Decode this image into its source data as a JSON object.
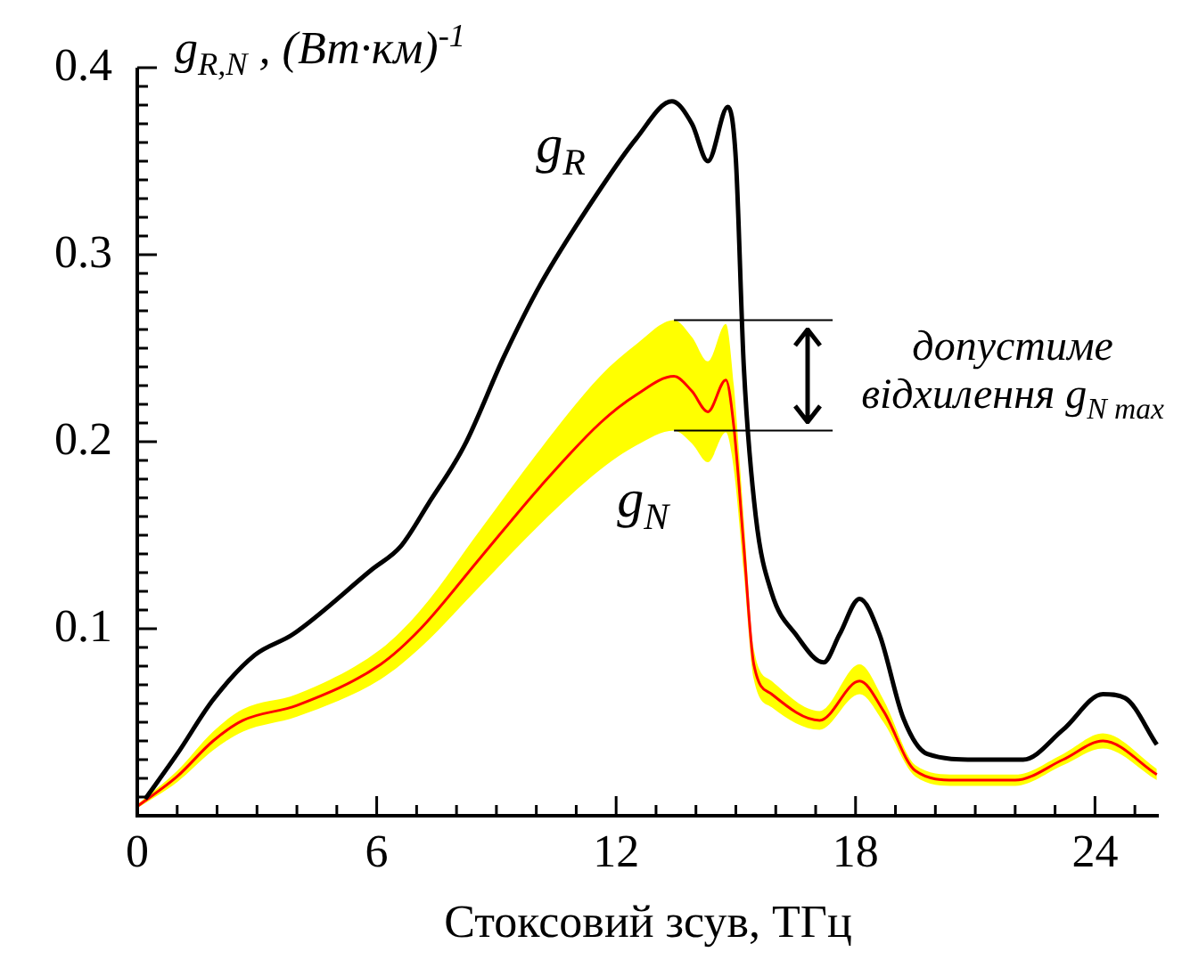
{
  "chart_data": {
    "type": "line",
    "xlabel": "Стоксовий зсув, ТГц",
    "ylabel": "g$_{R,N}$ ,  (Вт·км)$^{-1}$",
    "xlim": [
      0,
      25.6
    ],
    "ylim": [
      0,
      0.4
    ],
    "xticks": [
      0,
      {
        "value": 1,
        "label": null
      },
      {
        "value": 2,
        "label": null
      },
      {
        "value": 3,
        "label": null
      },
      {
        "value": 4,
        "label": null
      },
      {
        "value": 5,
        "label": null
      },
      6,
      {
        "value": 7,
        "label": null
      },
      {
        "value": 8,
        "label": null
      },
      {
        "value": 9,
        "label": null
      },
      {
        "value": 10,
        "label": null
      },
      {
        "value": 11,
        "label": null
      },
      12,
      {
        "value": 13,
        "label": null
      },
      {
        "value": 14,
        "label": null
      },
      {
        "value": 15,
        "label": null
      },
      {
        "value": 16,
        "label": null
      },
      {
        "value": 17,
        "label": null
      },
      18,
      {
        "value": 19,
        "label": null
      },
      {
        "value": 20,
        "label": null
      },
      {
        "value": 21,
        "label": null
      },
      {
        "value": 22,
        "label": null
      },
      {
        "value": 23,
        "label": null
      },
      24,
      {
        "value": 25,
        "label": null
      }
    ],
    "yticks": [
      {
        "value": 0,
        "label": null
      },
      {
        "value": 0.01,
        "label": null
      },
      {
        "value": 0.02,
        "label": null
      },
      {
        "value": 0.03,
        "label": null
      },
      {
        "value": 0.04,
        "label": null
      },
      {
        "value": 0.05,
        "label": null
      },
      {
        "value": 0.06,
        "label": null
      },
      {
        "value": 0.07,
        "label": null
      },
      {
        "value": 0.08,
        "label": null
      },
      {
        "value": 0.09,
        "label": null
      },
      0.1,
      {
        "value": 0.11,
        "label": null
      },
      {
        "value": 0.12,
        "label": null
      },
      {
        "value": 0.13,
        "label": null
      },
      {
        "value": 0.14,
        "label": null
      },
      {
        "value": 0.15,
        "label": null
      },
      {
        "value": 0.16,
        "label": null
      },
      {
        "value": 0.17,
        "label": null
      },
      {
        "value": 0.18,
        "label": null
      },
      {
        "value": 0.19,
        "label": null
      },
      0.2,
      {
        "value": 0.21,
        "label": null
      },
      {
        "value": 0.22,
        "label": null
      },
      {
        "value": 0.23,
        "label": null
      },
      {
        "value": 0.24,
        "label": null
      },
      {
        "value": 0.25,
        "label": null
      },
      {
        "value": 0.26,
        "label": null
      },
      {
        "value": 0.27,
        "label": null
      },
      {
        "value": 0.28,
        "label": null
      },
      {
        "value": 0.29,
        "label": null
      },
      0.3,
      {
        "value": 0.31,
        "label": null
      },
      {
        "value": 0.32,
        "label": null
      },
      {
        "value": 0.33,
        "label": null
      },
      {
        "value": 0.34,
        "label": null
      },
      {
        "value": 0.35,
        "label": null
      },
      {
        "value": 0.36,
        "label": null
      },
      {
        "value": 0.37,
        "label": null
      },
      {
        "value": 0.38,
        "label": null
      },
      {
        "value": 0.39,
        "label": null
      },
      0.4
    ],
    "series": [
      {
        "name": "g$_{R}$",
        "color": "#000000",
        "x": [
          0.2,
          1.0,
          1.9,
          2.95,
          3.9,
          5.9,
          6.6,
          7.3,
          8.2,
          9.2,
          10.1,
          11.6,
          12.5,
          13.4,
          13.9,
          14.3,
          14.8,
          15.0,
          15.2,
          15.5,
          15.9,
          16.5,
          17.2,
          17.6,
          18.1,
          18.6,
          19.2,
          19.8,
          21.0,
          22.2,
          23.2,
          24.2,
          24.75,
          25.55
        ],
        "values": [
          0.009,
          0.033,
          0.062,
          0.086,
          0.097,
          0.132,
          0.144,
          0.167,
          0.198,
          0.246,
          0.284,
          0.335,
          0.362,
          0.382,
          0.37,
          0.35,
          0.379,
          0.351,
          0.24,
          0.16,
          0.119,
          0.097,
          0.082,
          0.097,
          0.116,
          0.097,
          0.052,
          0.033,
          0.03,
          0.03,
          0.046,
          0.065,
          0.063,
          0.038
        ]
      },
      {
        "name": "g$_{N}$",
        "color": "#ff0000",
        "x": [
          0,
          1.0,
          1.9,
          2.65,
          4.0,
          6.1,
          7.1,
          8.6,
          10.1,
          11.6,
          12.5,
          13.45,
          13.9,
          14.3,
          14.75,
          14.95,
          15.2,
          15.45,
          15.9,
          17.1,
          18.1,
          18.7,
          19.5,
          20.5,
          22.0,
          23.2,
          24.2,
          25.55
        ],
        "values": [
          0.005,
          0.021,
          0.04,
          0.051,
          0.059,
          0.081,
          0.1,
          0.138,
          0.176,
          0.21,
          0.225,
          0.235,
          0.227,
          0.216,
          0.233,
          0.208,
          0.144,
          0.081,
          0.065,
          0.051,
          0.072,
          0.056,
          0.024,
          0.019,
          0.019,
          0.03,
          0.04,
          0.022
        ],
        "lower": [
          0.004,
          0.018,
          0.035,
          0.045,
          0.053,
          0.073,
          0.09,
          0.123,
          0.156,
          0.185,
          0.198,
          0.206,
          0.199,
          0.189,
          0.205,
          0.185,
          0.13,
          0.073,
          0.058,
          0.046,
          0.065,
          0.05,
          0.021,
          0.016,
          0.016,
          0.027,
          0.036,
          0.019
        ],
        "upper": [
          0.006,
          0.024,
          0.045,
          0.057,
          0.065,
          0.089,
          0.11,
          0.153,
          0.196,
          0.235,
          0.252,
          0.265,
          0.256,
          0.243,
          0.263,
          0.23,
          0.158,
          0.089,
          0.072,
          0.056,
          0.081,
          0.062,
          0.027,
          0.022,
          0.022,
          0.033,
          0.044,
          0.025
        ]
      }
    ],
    "ref_lines": [
      {
        "axis": "y",
        "value": 0.265
      },
      {
        "axis": "y",
        "value": 0.206
      }
    ],
    "annotations": [
      "допустиме відхилення g$_{N max}$"
    ]
  }
}
